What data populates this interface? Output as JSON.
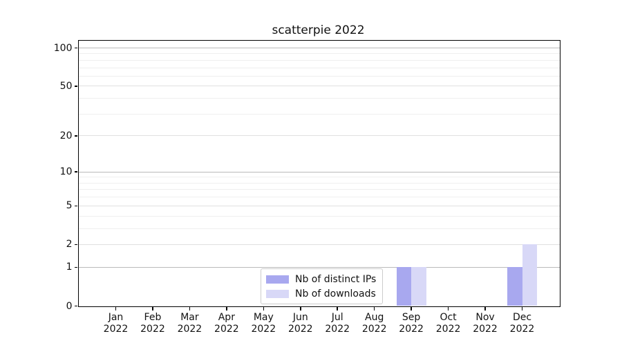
{
  "chart_data": {
    "type": "bar",
    "title": "scatterpie 2022",
    "xlabel": "",
    "ylabel": "",
    "categories": [
      "Jan 2022",
      "Feb 2022",
      "Mar 2022",
      "Apr 2022",
      "May 2022",
      "Jun 2022",
      "Jul 2022",
      "Aug 2022",
      "Sep 2022",
      "Oct 2022",
      "Nov 2022",
      "Dec 2022"
    ],
    "series": [
      {
        "name": "Nb of distinct IPs",
        "color": "#a8a8ef",
        "values": [
          0,
          0,
          0,
          0,
          0,
          0,
          0,
          0,
          1,
          0,
          0,
          1
        ]
      },
      {
        "name": "Nb of downloads",
        "color": "#d8d8f7",
        "values": [
          0,
          0,
          0,
          0,
          0,
          0,
          0,
          0,
          1,
          0,
          0,
          2
        ]
      }
    ],
    "yscale": "log1p",
    "ylim": [
      0,
      114.7
    ],
    "y_ticks": [
      0,
      1,
      2,
      5,
      10,
      20,
      50,
      100
    ],
    "y_minor_gridlines": [
      3,
      4,
      6,
      7,
      8,
      9,
      30,
      40,
      60,
      70,
      80,
      90
    ],
    "y_emphasized_gridlines": [
      1,
      10,
      100
    ],
    "grid": true,
    "legend": {
      "position": "lower center",
      "entries": [
        "Nb of distinct IPs",
        "Nb of downloads"
      ]
    },
    "colors": {
      "background": "#ffffff",
      "spine": "#000000",
      "grid_major": "#e0e0e0",
      "grid_minor": "#efefef",
      "grid_emphasized": "#b9b9b9"
    }
  }
}
